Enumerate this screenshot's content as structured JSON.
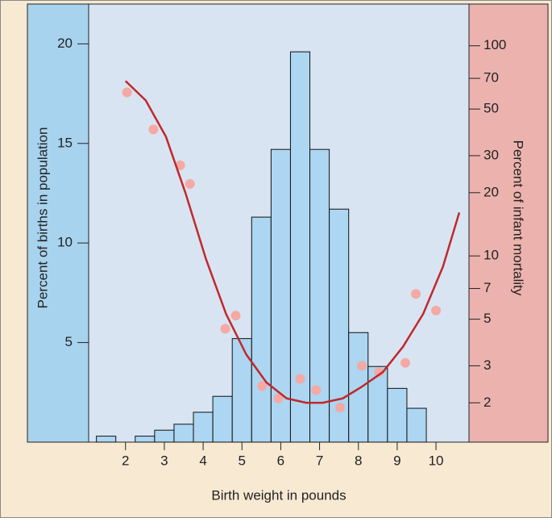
{
  "chart_data": {
    "type": "histogram",
    "xlabel": "Birth weight in pounds",
    "ylabel": "Percent of births in population",
    "y2label": "Percent of infant mortality",
    "bins": [
      1.25,
      1.75,
      2.25,
      2.75,
      3.25,
      3.75,
      4.25,
      4.75,
      5.25,
      5.75,
      6.25,
      6.75,
      7.25,
      7.75,
      8.25,
      8.75,
      9.25,
      9.75
    ],
    "values": [
      0.3,
      0,
      0.3,
      0.6,
      0.9,
      1.5,
      2.3,
      5.2,
      11.3,
      14.7,
      19.6,
      14.7,
      11.7,
      5.5,
      3.8,
      2.7,
      1.7
    ],
    "color": "#acd6f1",
    "xlim": [
      1.05,
      10.85
    ],
    "xticks": [
      2,
      3,
      4,
      5,
      6,
      7,
      8,
      9,
      10
    ],
    "ylim": [
      0,
      22
    ],
    "yticks": [
      5,
      10,
      15,
      20
    ],
    "y2lim": [
      1.3,
      158
    ],
    "y2ticks": [
      2,
      3,
      5,
      7,
      10,
      20,
      30,
      50,
      70,
      100
    ],
    "y2scale": "log",
    "series": [
      {
        "type": "scatter",
        "axis": "y2",
        "color": "#f4a9a5",
        "x": [
          2.04,
          2.72,
          3.41,
          3.66,
          4.57,
          4.84,
          5.52,
          5.94,
          6.5,
          6.91,
          7.53,
          8.09,
          8.53,
          9.21,
          9.48,
          10.0
        ],
        "values": [
          60,
          40,
          27,
          22,
          4.5,
          5.2,
          2.4,
          2.1,
          2.6,
          2.3,
          1.9,
          3.0,
          2.8,
          3.1,
          6.6,
          5.5
        ]
      },
      {
        "type": "line",
        "axis": "y2",
        "color": "#c0282c",
        "x": [
          2,
          2.52,
          3.04,
          3.55,
          4.07,
          4.59,
          5.11,
          5.63,
          6.15,
          6.66,
          7.08,
          7.6,
          8.11,
          8.63,
          9.15,
          9.67,
          10.18,
          10.6
        ],
        "values": [
          68,
          55,
          37,
          19.8,
          9.7,
          5.3,
          3.4,
          2.5,
          2.1,
          2.0,
          2.0,
          2.1,
          2.4,
          2.8,
          3.7,
          5.3,
          8.9,
          16.1
        ]
      }
    ]
  }
}
